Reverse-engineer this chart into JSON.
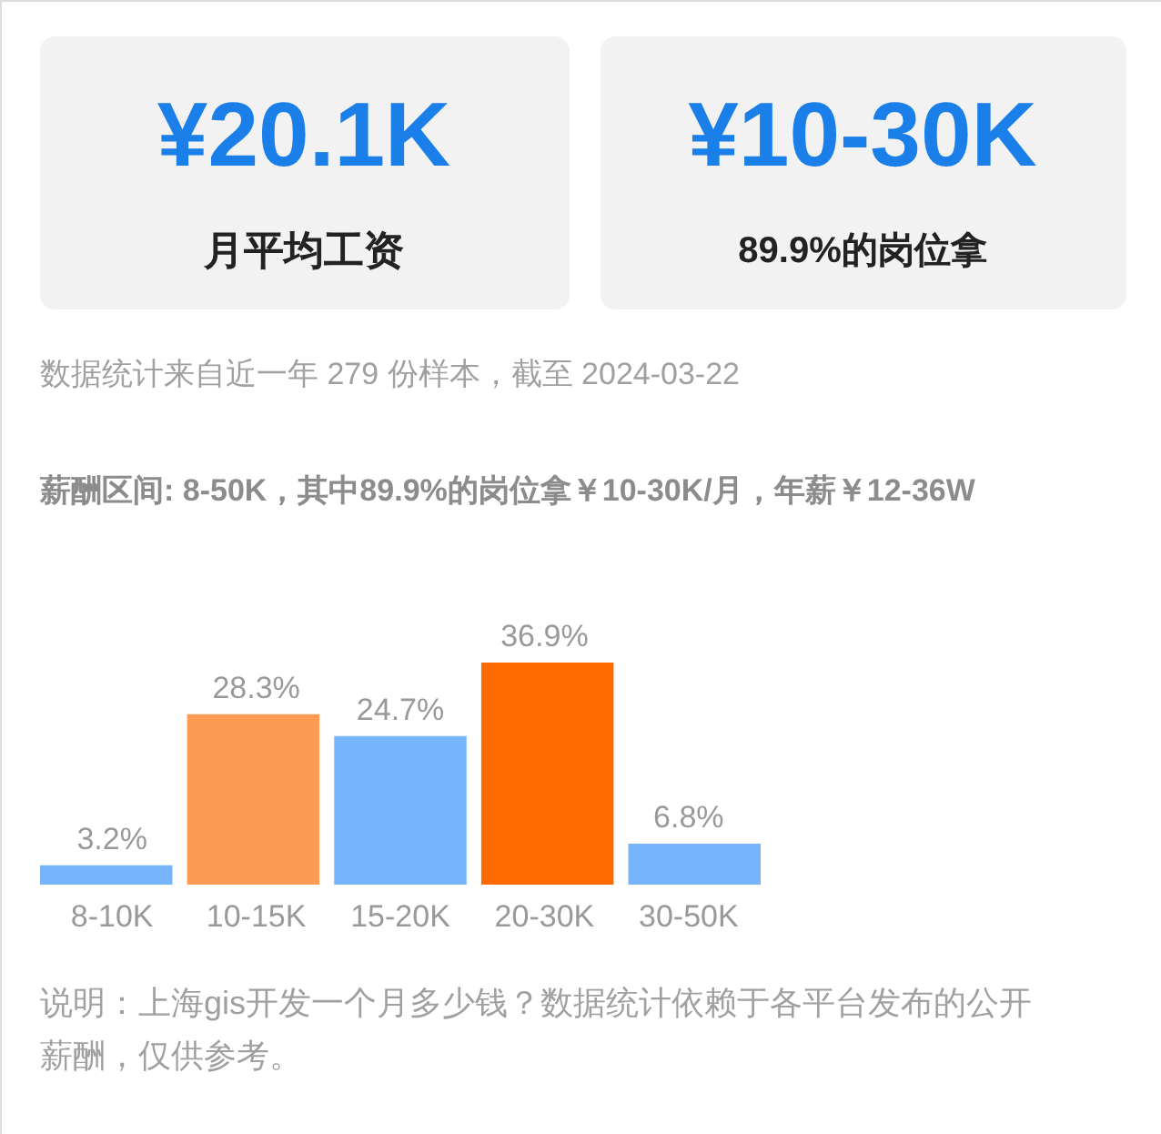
{
  "chart_data": {
    "type": "bar",
    "categories": [
      "8-10K",
      "10-15K",
      "15-20K",
      "20-30K",
      "30-50K"
    ],
    "values": [
      3.2,
      28.3,
      24.7,
      36.9,
      6.8
    ],
    "colors": [
      "#76b4fb",
      "#fd9b52",
      "#76b4fb",
      "#ff6a00",
      "#76b4fb"
    ],
    "value_labels": [
      "3.2%",
      "28.3%",
      "24.7%",
      "36.9%",
      "6.8%"
    ],
    "annotations": [
      "¥20.1K",
      "月平均工资",
      "¥10-30K",
      "89.9%的岗位拿",
      "数据统计来自近一年 279 份样本，截至 2024-03-22",
      "薪酬区间: 8-50K，其中89.9%的岗位拿￥10-30K/月，年薪￥12-36W",
      "说明：上海gis开发一个月多少钱？数据统计依赖于各平台发布的公开薪酬，仅供参考。"
    ]
  }
}
